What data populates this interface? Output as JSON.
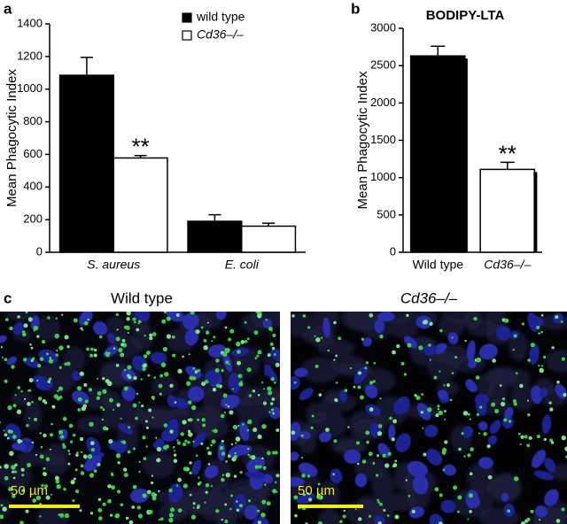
{
  "chart_data": [
    {
      "type": "bar",
      "panel": "a",
      "ylabel": "Mean Phagocytic Index",
      "categories": [
        "S. aureus",
        "E. coli"
      ],
      "series": [
        {
          "name": "wild type",
          "color": "#000000",
          "values": [
            1085,
            190
          ],
          "errors": [
            110,
            40
          ]
        },
        {
          "name": "Cd36–/–",
          "color": "#ffffff",
          "values": [
            578,
            160
          ],
          "errors": [
            15,
            18
          ]
        }
      ],
      "annotations": [
        "**"
      ],
      "ylim": [
        0,
        1400
      ],
      "yticks": [
        0,
        200,
        400,
        600,
        800,
        1000,
        1200,
        1400
      ]
    },
    {
      "type": "bar",
      "panel": "b",
      "title": "BODIPY-LTA",
      "ylabel": "Mean Phagocytic Index",
      "categories": [
        "Wild type",
        "Cd36–/–"
      ],
      "values": [
        2630,
        1110
      ],
      "errors": [
        130,
        95
      ],
      "colors": [
        "#000000",
        "#ffffff"
      ],
      "annotations": [
        "**"
      ],
      "ylim": [
        0,
        3000
      ],
      "yticks": [
        0,
        500,
        1000,
        1500,
        2000,
        2500,
        3000
      ]
    }
  ],
  "panel_c": {
    "label": "c",
    "images": [
      {
        "title": "Wild type",
        "scale_bar": "50 µm"
      },
      {
        "title": "Cd36–/–",
        "scale_bar": "50 µm"
      }
    ]
  }
}
